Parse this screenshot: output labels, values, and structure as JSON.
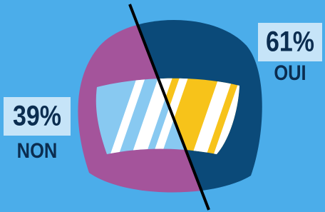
{
  "chart_data": {
    "type": "split",
    "categories": [
      "NON",
      "OUI"
    ],
    "values": [
      39,
      61
    ],
    "value_labels": [
      "39%",
      "61%"
    ],
    "colors": [
      "#a4549b",
      "#0b4a79"
    ]
  }
}
